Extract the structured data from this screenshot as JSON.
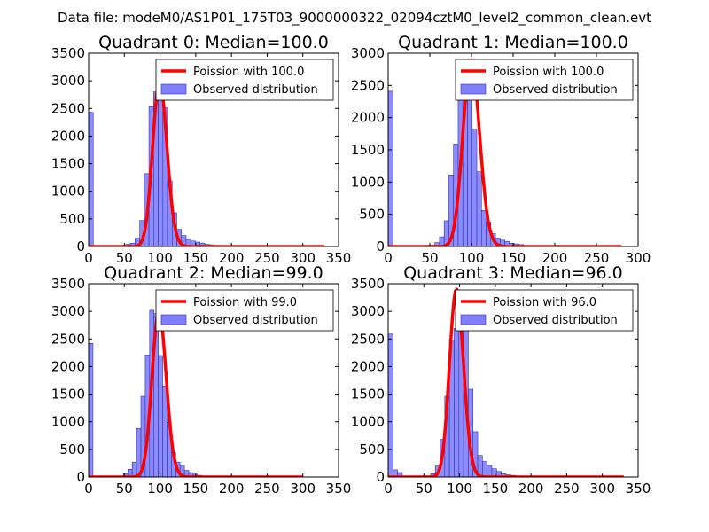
{
  "figure": {
    "suptitle": "Data file: modeM0/AS1P01_175T03_9000000322_02094cztM0_level2_common_clean.evt"
  },
  "colors": {
    "hist_fill": "#7f7fff",
    "hist_edge": "#3333aa",
    "poisson_line": "#ff0000"
  },
  "chart_data": [
    {
      "type": "bar",
      "title": "Quadrant 0: Median=100.0",
      "xlim": [
        0,
        350
      ],
      "ylim": [
        0,
        3500
      ],
      "xticks": [
        "0",
        "50",
        "100",
        "150",
        "200",
        "250",
        "300",
        "350"
      ],
      "yticks": [
        "0",
        "500",
        "1000",
        "1500",
        "2000",
        "2500",
        "3000",
        "3500"
      ],
      "legend": [
        "Poission with 100.0",
        "Observed distribution"
      ],
      "legend_position": "top-right",
      "bin_width": 6.5,
      "bins_start": 0,
      "hist_values": [
        2430,
        0,
        0,
        0,
        0,
        0,
        0,
        20,
        40,
        60,
        150,
        470,
        1320,
        2530,
        2800,
        2960,
        2510,
        1190,
        610,
        310,
        200,
        130,
        100,
        80,
        60,
        40,
        30,
        20,
        10
      ],
      "poisson": {
        "lambda": 100.0,
        "x_range": [
          0,
          330
        ],
        "peak": 3000
      }
    },
    {
      "type": "bar",
      "title": "Quadrant 1: Median=100.0",
      "xlim": [
        0,
        300
      ],
      "ylim": [
        0,
        3000
      ],
      "xticks": [
        "0",
        "50",
        "100",
        "150",
        "200",
        "250",
        "300"
      ],
      "yticks": [
        "0",
        "500",
        "1000",
        "1500",
        "2000",
        "2500",
        "3000"
      ],
      "legend": [
        "Poission with 100.0",
        "Observed distribution"
      ],
      "legend_position": "top-right",
      "bin_width": 5.6,
      "bins_start": 0,
      "hist_values": [
        2410,
        0,
        0,
        0,
        0,
        0,
        0,
        0,
        0,
        20,
        60,
        150,
        400,
        1110,
        1590,
        2280,
        2770,
        2310,
        1820,
        1160,
        560,
        380,
        200,
        130,
        100,
        80,
        50,
        40,
        30,
        10
      ],
      "poisson": {
        "lambda": 100.0,
        "x_range": [
          0,
          280
        ],
        "peak": 2900
      }
    },
    {
      "type": "bar",
      "title": "Quadrant 2: Median=99.0",
      "xlim": [
        0,
        350
      ],
      "ylim": [
        0,
        3500
      ],
      "xticks": [
        "0",
        "50",
        "100",
        "150",
        "200",
        "250",
        "300",
        "350"
      ],
      "yticks": [
        "0",
        "500",
        "1000",
        "1500",
        "2000",
        "2500",
        "3000",
        "3500"
      ],
      "legend": [
        "Poission with 99.0",
        "Observed distribution"
      ],
      "legend_position": "top-right",
      "bin_width": 6.1,
      "bins_start": 0,
      "hist_values": [
        2420,
        0,
        0,
        0,
        0,
        0,
        0,
        20,
        60,
        140,
        270,
        880,
        1460,
        2210,
        3020,
        2960,
        2200,
        1650,
        990,
        440,
        270,
        210,
        120,
        80,
        50,
        30,
        20,
        10
      ],
      "poisson": {
        "lambda": 99.0,
        "x_range": [
          0,
          300
        ],
        "peak": 3000
      }
    },
    {
      "type": "bar",
      "title": "Quadrant 3: Median=96.0",
      "xlim": [
        0,
        350
      ],
      "ylim": [
        0,
        3500
      ],
      "xticks": [
        "0",
        "50",
        "100",
        "150",
        "200",
        "250",
        "300",
        "350"
      ],
      "yticks": [
        "0",
        "500",
        "1000",
        "1500",
        "2000",
        "2500",
        "3000",
        "3500"
      ],
      "legend": [
        "Poission with 96.0",
        "Observed distribution"
      ],
      "legend_position": "top-right",
      "bin_width": 6.6,
      "bins_start": 0,
      "hist_values": [
        2590,
        130,
        80,
        0,
        0,
        0,
        0,
        0,
        20,
        60,
        200,
        680,
        1460,
        2480,
        2690,
        3370,
        2730,
        1590,
        820,
        390,
        280,
        210,
        150,
        100,
        60,
        40,
        30,
        20,
        10
      ],
      "poisson": {
        "lambda": 96.0,
        "x_range": [
          0,
          330
        ],
        "peak": 3400
      }
    }
  ]
}
